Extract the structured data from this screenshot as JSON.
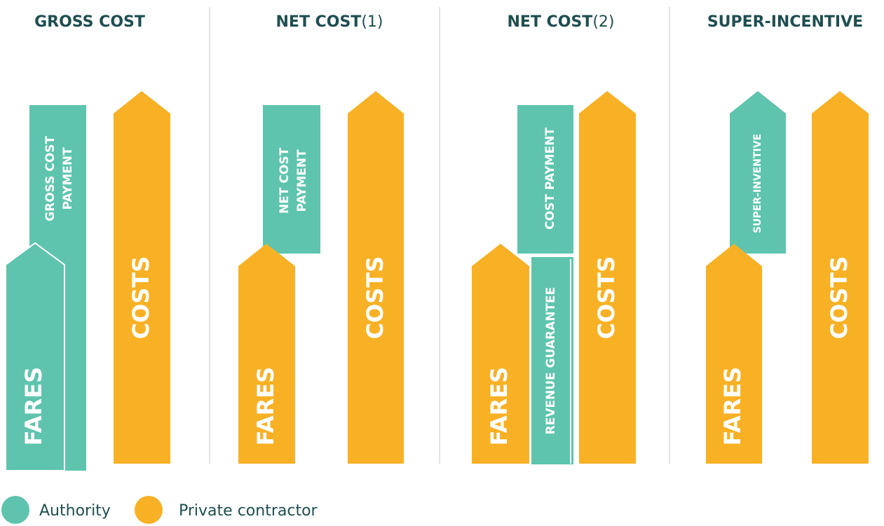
{
  "panels": [
    {
      "title": "GROSS COST",
      "blocks": [
        {
          "label_lines": [
            "GROSS COST",
            "PAYMENT"
          ],
          "party": "Authority"
        },
        {
          "label_lines": [
            "FARES"
          ],
          "party": "Authority"
        },
        {
          "label_lines": [
            "COSTS"
          ],
          "party": "Private contractor"
        }
      ]
    },
    {
      "title": "NET COST",
      "note": "(1)",
      "blocks": [
        {
          "label_lines": [
            "NET COST",
            "PAYMENT"
          ],
          "party": "Authority"
        },
        {
          "label_lines": [
            "FARES"
          ],
          "party": "Private contractor"
        },
        {
          "label_lines": [
            "COSTS"
          ],
          "party": "Private contractor"
        }
      ]
    },
    {
      "title": "NET COST",
      "note": "(2)",
      "blocks": [
        {
          "label_lines": [
            "COST PAYMENT"
          ],
          "party": "Authority"
        },
        {
          "label_lines": [
            "REVENUE GUARANTEE"
          ],
          "party": "Authority"
        },
        {
          "label_lines": [
            "FARES"
          ],
          "party": "Private contractor"
        },
        {
          "label_lines": [
            "COSTS"
          ],
          "party": "Private contractor"
        }
      ]
    },
    {
      "title": "SUPER-INCENTIVE",
      "blocks": [
        {
          "label_lines": [
            "SUPER-INVENTIVE"
          ],
          "party": "Authority"
        },
        {
          "label_lines": [
            "FARES"
          ],
          "party": "Private contractor"
        },
        {
          "label_lines": [
            "COSTS"
          ],
          "party": "Private contractor"
        }
      ]
    }
  ],
  "legend": [
    {
      "name": "Authority",
      "color": "#5ec4ad"
    },
    {
      "name": "Private contractor",
      "color": "#f8b125"
    }
  ]
}
